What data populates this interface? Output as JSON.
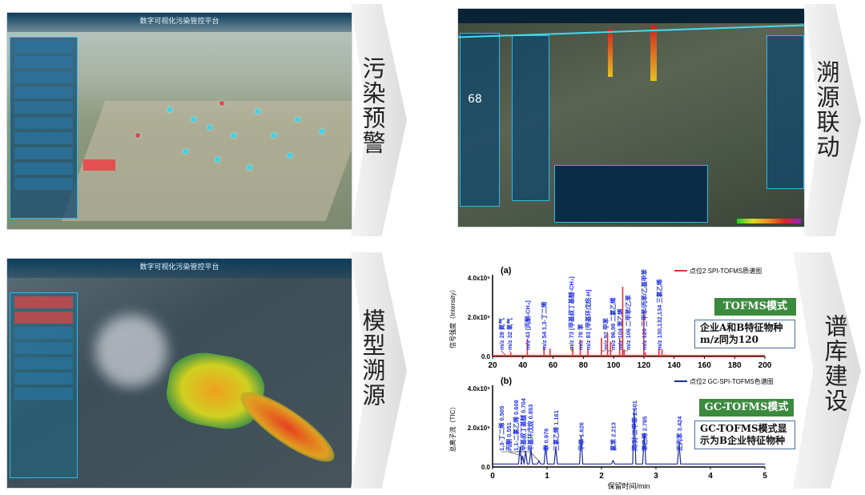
{
  "panels": {
    "warning": {
      "label": "污染预警",
      "platform_title": "数字可视化污染管控平台"
    },
    "tracing": {
      "label": "溯源联动",
      "aqi": "68"
    },
    "model": {
      "label": "模型溯源",
      "platform_title": "数字可视化污染管控平台"
    },
    "library": {
      "label": "谱库建设"
    }
  },
  "colors": {
    "spi": "#e8312f",
    "gc": "#1c2a9c",
    "label_blue": "#2233dd",
    "green_box": "#3b8a3e"
  },
  "chart_data": [
    {
      "type": "bar",
      "panel": "(a)",
      "legend": "点位2 SPI-TOFMS质谱图",
      "legend_position": "top-right",
      "ylabel": "信号强度（Intensity）",
      "xlim": [
        20,
        200
      ],
      "ylim": [
        0,
        400000
      ],
      "xticks": [
        "20",
        "40",
        "60",
        "80",
        "100",
        "120",
        "140",
        "160",
        "180",
        "200"
      ],
      "yticks": [
        "0.0",
        "2.0x10⁵",
        "4.0x10⁵"
      ],
      "peaks": [
        {
          "x": 28,
          "y": 10000,
          "label": "m/z 28 氮气"
        },
        {
          "x": 32,
          "y": 20000,
          "label": "m/z 32 氧气"
        },
        {
          "x": 43,
          "y": 90000,
          "label": "m/z 43 [丙酮-CH₃]"
        },
        {
          "x": 54,
          "y": 45000,
          "label": "m/z 54 1,3-丁二烯"
        },
        {
          "x": 58,
          "y": 40000
        },
        {
          "x": 73,
          "y": 50000,
          "label": "m/z 73 [甲基叔丁基醚-CH₃]"
        },
        {
          "x": 78,
          "y": 85000,
          "label": "m/z 78 苯"
        },
        {
          "x": 83,
          "y": 40000,
          "label": "m/z 83 [甲基环戊烷-H]"
        },
        {
          "x": 92,
          "y": 95000,
          "label": "m/z 92 甲苯"
        },
        {
          "x": 96,
          "y": 120000,
          "label": "m/z 96,98 二氯乙烯"
        },
        {
          "x": 98,
          "y": 75000
        },
        {
          "x": 104,
          "y": 95000,
          "label": "m/z 104 苯乙烯"
        },
        {
          "x": 106,
          "y": 355000,
          "label": "m/z 106 二甲苯/乙苯"
        },
        {
          "x": 107,
          "y": 35000
        },
        {
          "x": 120,
          "y": 235000,
          "label": "m/z 120 三甲苯/丙苯/乙基甲苯"
        },
        {
          "x": 121,
          "y": 20000
        },
        {
          "x": 130,
          "y": 40000,
          "label": "m/z 130,132,134 三氯乙烯"
        },
        {
          "x": 132,
          "y": 35000
        },
        {
          "x": 134,
          "y": 10000
        }
      ],
      "mode_box": "TOFMS模式",
      "note": "企业A和B特征物种m/z同为120"
    },
    {
      "type": "line",
      "panel": "(b)",
      "legend": "点位2 GC-SPI-TOFMS色谱图",
      "legend_position": "top-right",
      "ylabel": "总离子流（TIC）",
      "xlabel": "保留时间/min",
      "xlim": [
        0,
        5
      ],
      "ylim": [
        0,
        400000
      ],
      "xticks": [
        "0",
        "1",
        "2",
        "3",
        "4",
        "5"
      ],
      "yticks": [
        "0.0",
        "2.0x10⁵",
        "4.0x10⁵"
      ],
      "peaks": [
        {
          "x": 0.505,
          "y": 100000,
          "label": "1,3-丁二烯 0.505"
        },
        {
          "x": 0.551,
          "y": 55000,
          "label": "丙酮 0.551"
        },
        {
          "x": 0.608,
          "y": 80000,
          "label": "1,1-二氯乙烯 0.608"
        },
        {
          "x": 0.704,
          "y": 90000,
          "label": "甲基叔丁基醚 0.704"
        },
        {
          "x": 0.853,
          "y": 30000,
          "label": "甲基环戊烷 0.853"
        },
        {
          "x": 0.976,
          "y": 110000,
          "label": "苯 0.976"
        },
        {
          "x": 1.161,
          "y": 100000,
          "label": "三氯乙烯 1.161"
        },
        {
          "x": 1.626,
          "y": 155000,
          "label": "甲苯 1.626"
        },
        {
          "x": 2.213,
          "y": 32000,
          "label": "氯苯 2.213"
        },
        {
          "x": 2.601,
          "y": 290000,
          "label": "间/对-二甲苯 2.601"
        },
        {
          "x": 2.785,
          "y": 170000,
          "label": "苯乙烯 2.785"
        },
        {
          "x": 3.424,
          "y": 125000,
          "label": "正丙苯 3.424"
        }
      ],
      "baseline": 15000,
      "mode_box": "GC-TOFMS模式",
      "note": "GC-TOFMS模式显示为B企业特征物种"
    }
  ]
}
